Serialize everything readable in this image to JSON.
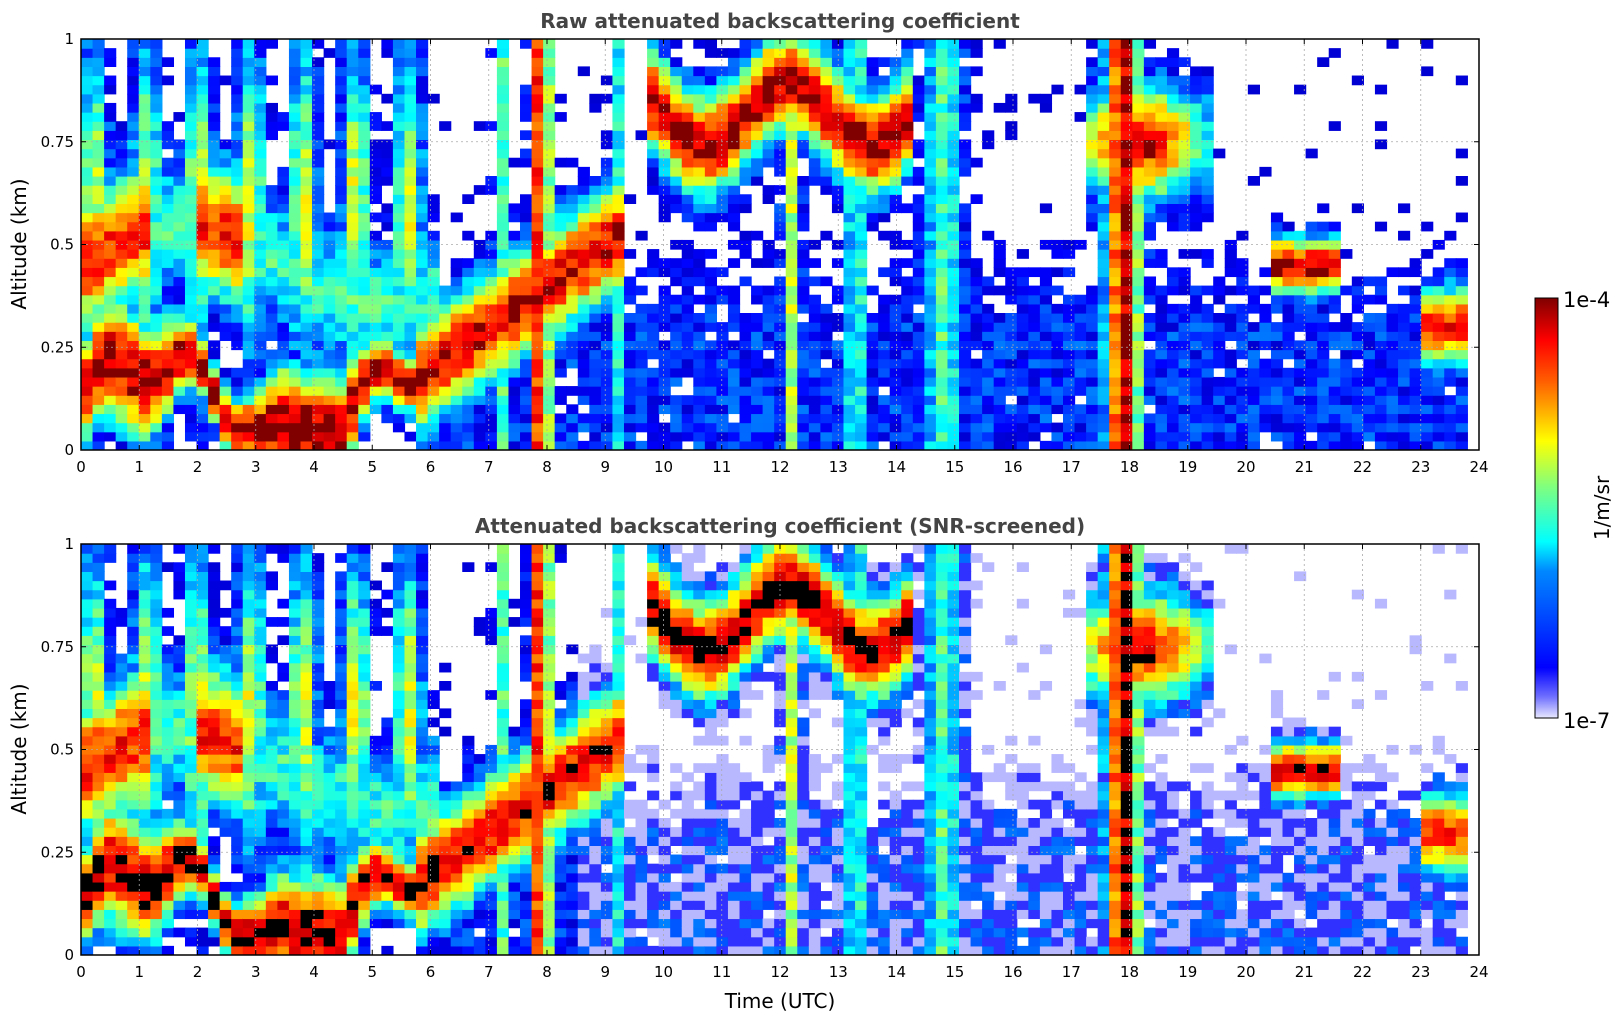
{
  "chart_data": [
    {
      "type": "heatmap",
      "title": "Raw attenuated backscattering coefficient",
      "xlabel": "",
      "ylabel": "Altitude (km)",
      "xlim": [
        0,
        24
      ],
      "ylim": [
        0,
        1
      ],
      "x_ticks": [
        "0",
        "1",
        "2",
        "3",
        "4",
        "5",
        "6",
        "7",
        "8",
        "9",
        "10",
        "11",
        "12",
        "13",
        "14",
        "15",
        "16",
        "17",
        "18",
        "19",
        "20",
        "21",
        "22",
        "23",
        "24"
      ],
      "y_ticks": [
        "0",
        "0.25",
        "0.5",
        "0.75",
        "1"
      ],
      "grid": true,
      "data_extent_x": [
        0,
        23.8
      ],
      "saturation_color": "#800000",
      "features": [
        {
          "x": [
            0,
            6
          ],
          "y": [
            0,
            0.3
          ],
          "level": "high"
        },
        {
          "x": [
            7.8,
            8.1
          ],
          "y": [
            0,
            0.75
          ],
          "level": "high"
        },
        {
          "x": [
            10,
            14
          ],
          "y": [
            0.55,
            1
          ],
          "level": "high"
        },
        {
          "x": [
            14.5,
            15.1
          ],
          "y": [
            0,
            1
          ],
          "level": "mid"
        },
        {
          "x": [
            17.5,
            18.2
          ],
          "y": [
            0,
            1
          ],
          "level": "high"
        },
        {
          "x": [
            20.5,
            21.5
          ],
          "y": [
            0.35,
            0.55
          ],
          "level": "high"
        },
        {
          "x": [
            6,
            23.8
          ],
          "y": [
            0,
            0.25
          ],
          "level": "low"
        }
      ]
    },
    {
      "type": "heatmap",
      "title": "Attenuated backscattering coefficient (SNR-screened)",
      "xlabel": "Time (UTC)",
      "ylabel": "Altitude (km)",
      "xlim": [
        0,
        24
      ],
      "ylim": [
        0,
        1
      ],
      "x_ticks": [
        "0",
        "1",
        "2",
        "3",
        "4",
        "5",
        "6",
        "7",
        "8",
        "9",
        "10",
        "11",
        "12",
        "13",
        "14",
        "15",
        "16",
        "17",
        "18",
        "19",
        "20",
        "21",
        "22",
        "23",
        "24"
      ],
      "y_ticks": [
        "0",
        "0.25",
        "0.5",
        "0.75",
        "1"
      ],
      "grid": true,
      "data_extent_x": [
        0,
        23.8
      ],
      "saturation_color": "#000000",
      "features": [
        {
          "x": [
            0,
            6
          ],
          "y": [
            0,
            0.3
          ],
          "level": "high"
        },
        {
          "x": [
            7.8,
            8.1
          ],
          "y": [
            0,
            0.75
          ],
          "level": "high"
        },
        {
          "x": [
            10,
            14
          ],
          "y": [
            0.55,
            1
          ],
          "level": "high"
        },
        {
          "x": [
            14.5,
            15.1
          ],
          "y": [
            0,
            1
          ],
          "level": "mid"
        },
        {
          "x": [
            17.5,
            18.2
          ],
          "y": [
            0,
            1
          ],
          "level": "high"
        },
        {
          "x": [
            20.5,
            21.5
          ],
          "y": [
            0.35,
            0.55
          ],
          "level": "high"
        },
        {
          "x": [
            6,
            23.8
          ],
          "y": [
            0,
            0.4
          ],
          "level": "low"
        }
      ]
    }
  ],
  "colorbar": {
    "label": "1/m/sr",
    "max_label": "1e-4",
    "min_label": "1e-7",
    "colormap": "jet",
    "scale": "log",
    "range": [
      1e-07,
      0.0001
    ]
  }
}
